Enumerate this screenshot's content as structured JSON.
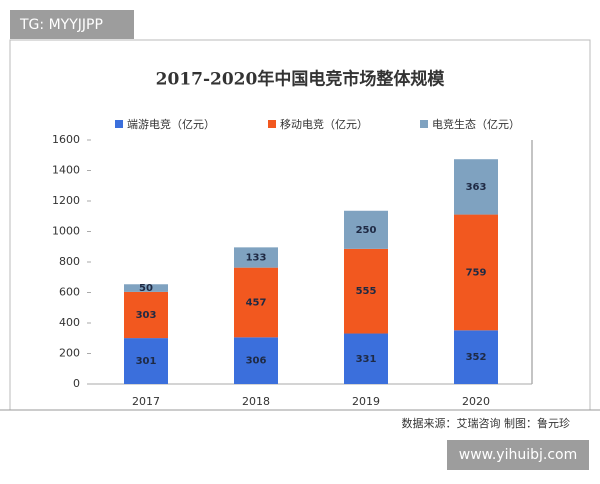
{
  "watermark_top": "TG: MYYJJPP",
  "source": "数据来源：艾瑞咨询  制图：鲁元珍",
  "watermark_bottom": "www.yihuibj.com",
  "chart_data": {
    "type": "stacked_bar",
    "title": "2017-2020年中国电竞市场整体规模",
    "categories": [
      "2017",
      "2018",
      "2019",
      "2020"
    ],
    "series": [
      {
        "name": "端游电竞（亿元）",
        "color": "#3b6fdc",
        "values": [
          301,
          306,
          331,
          352
        ]
      },
      {
        "name": "移动电竞（亿元）",
        "color": "#f2581f",
        "values": [
          303,
          457,
          555,
          759
        ]
      },
      {
        "name": "电竞生态（亿元）",
        "color": "#7fa2c0",
        "values": [
          50,
          133,
          250,
          363
        ]
      }
    ],
    "ylim": [
      0,
      1600
    ],
    "yticks": [
      0,
      200,
      400,
      600,
      800,
      1000,
      1200,
      1400,
      1600
    ]
  }
}
